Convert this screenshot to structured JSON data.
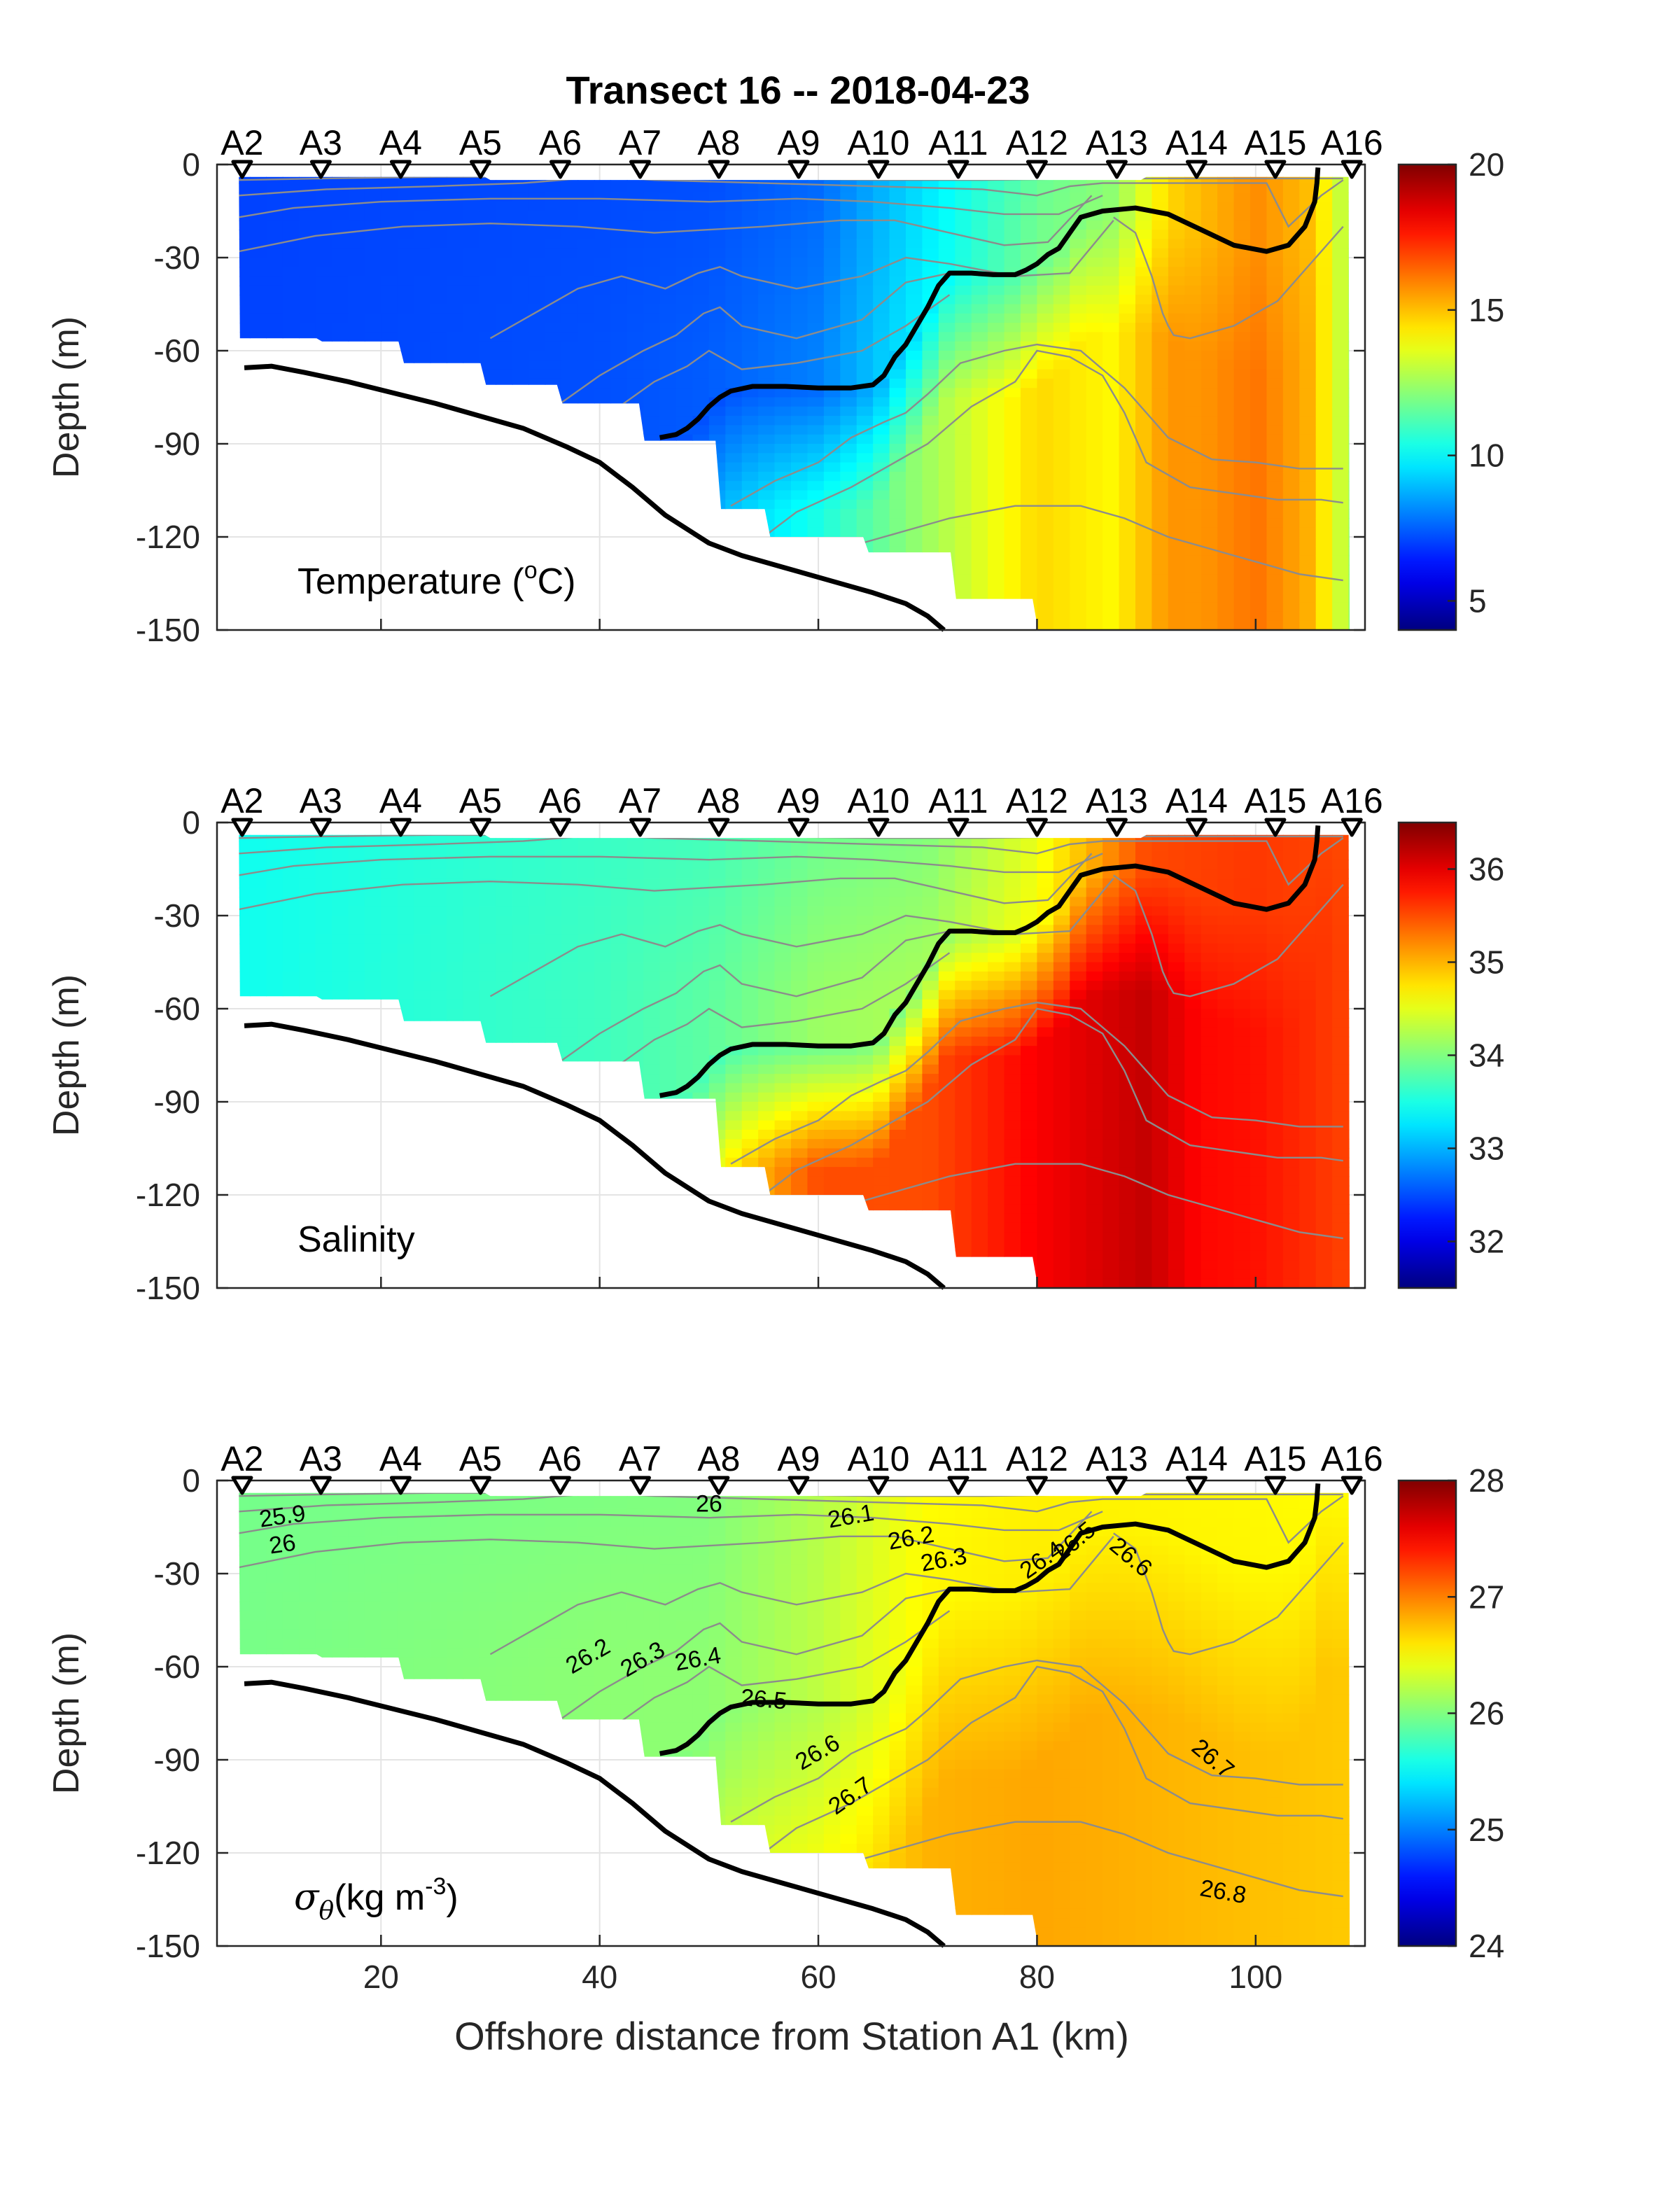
{
  "figure_title": "Transect 16 -- 2018-04-23",
  "xlabel": "Offshore distance from Station A1 (km)",
  "x_tick_labels": [
    "20",
    "40",
    "60",
    "80",
    "100"
  ],
  "x_ticks": [
    20,
    40,
    60,
    80,
    100
  ],
  "xlim": [
    5,
    110
  ],
  "stations": {
    "names": [
      "A2",
      "A3",
      "A4",
      "A5",
      "A6",
      "A7",
      "A8",
      "A9",
      "A10",
      "A11",
      "A12",
      "A13",
      "A14",
      "A15",
      "A16"
    ],
    "km": [
      7.3,
      14.5,
      21.8,
      29.1,
      36.4,
      43.7,
      50.9,
      58.2,
      65.5,
      72.8,
      80.0,
      87.3,
      94.6,
      101.8,
      108.8
    ]
  },
  "colors": {
    "contour_gray": "#8c8c8c",
    "bold_line": "#000000",
    "bathymetry": "#000000",
    "grid": "#e4e4e4"
  },
  "chart_data": [
    {
      "type": "heatmap",
      "name": "temperature",
      "ylabel": "Depth (m)",
      "panel_label": "Temperature (",
      "panel_label_sup": "o",
      "panel_label_suffix": "C)",
      "ylim": [
        -150,
        0
      ],
      "y_ticks": [
        0,
        -30,
        -60,
        -90,
        -120,
        -150
      ],
      "y_tick_labels": [
        "0",
        "-30",
        "-60",
        "-90",
        "-120",
        "-150"
      ],
      "clim": [
        4,
        20
      ],
      "colorbar_ticks": [
        5,
        10,
        15,
        20
      ],
      "colorbar_tick_labels": [
        "5",
        "10",
        "15",
        "20"
      ],
      "color_stops": [
        [
          0,
          7.0
        ],
        [
          50,
          7.2
        ],
        [
          60,
          7.6
        ],
        [
          70,
          9.6
        ],
        [
          73,
          10.2
        ],
        [
          80,
          11.6
        ],
        [
          87,
          12.2
        ],
        [
          92,
          14.6
        ],
        [
          100,
          15.8
        ],
        [
          105,
          15.0
        ],
        [
          110,
          11.6
        ]
      ],
      "deep_bias": [
        [
          0,
          0.0
        ],
        [
          40,
          0.5
        ],
        [
          60,
          2.8
        ],
        [
          80,
          3.0
        ],
        [
          95,
          0.6
        ],
        [
          110,
          0.0
        ]
      ],
      "deep_scale": 40
    },
    {
      "type": "heatmap",
      "name": "salinity",
      "ylabel": "Depth (m)",
      "panel_label": "Salinity",
      "ylim": [
        -150,
        0
      ],
      "y_ticks": [
        0,
        -30,
        -60,
        -90,
        -120,
        -150
      ],
      "y_tick_labels": [
        "0",
        "-30",
        "-60",
        "-90",
        "-120",
        "-150"
      ],
      "clim": [
        31.5,
        36.5
      ],
      "colorbar_ticks": [
        32,
        33,
        34,
        35,
        36
      ],
      "colorbar_tick_labels": [
        "32",
        "33",
        "34",
        "35",
        "36"
      ],
      "color_stops": [
        [
          0,
          33.4
        ],
        [
          30,
          33.6
        ],
        [
          50,
          33.7
        ],
        [
          60,
          33.9
        ],
        [
          70,
          34.0
        ],
        [
          80,
          34.5
        ],
        [
          90,
          35.5
        ],
        [
          100,
          35.6
        ],
        [
          110,
          35.5
        ]
      ],
      "deep_bias": [
        [
          0,
          0.0
        ],
        [
          40,
          0.2
        ],
        [
          60,
          1.6
        ],
        [
          80,
          1.4
        ],
        [
          95,
          0.3
        ],
        [
          110,
          0.0
        ]
      ],
      "deep_scale": 40
    },
    {
      "type": "heatmap",
      "name": "sigma_theta",
      "ylabel": "Depth (m)",
      "panel_label": "σ",
      "panel_label_sub": "θ",
      "panel_label_suffix": "(kg m",
      "panel_label_sup": "-3",
      "panel_label_end": ")",
      "ylim": [
        -150,
        0
      ],
      "y_ticks": [
        0,
        -30,
        -60,
        -90,
        -120,
        -150
      ],
      "y_tick_labels": [
        "0",
        "-30",
        "-60",
        "-90",
        "-120",
        "-150"
      ],
      "clim": [
        24,
        28
      ],
      "colorbar_ticks": [
        24,
        25,
        26,
        27,
        28
      ],
      "colorbar_tick_labels": [
        "24",
        "25",
        "26",
        "27",
        "28"
      ],
      "color_stops": [
        [
          0,
          25.95
        ],
        [
          50,
          26.0
        ],
        [
          60,
          26.2
        ],
        [
          70,
          26.5
        ],
        [
          80,
          26.55
        ],
        [
          110,
          26.5
        ]
      ],
      "deep_bias": [
        [
          0,
          0.0
        ],
        [
          40,
          0.4
        ],
        [
          60,
          0.3
        ],
        [
          80,
          0.3
        ],
        [
          110,
          0.2
        ]
      ],
      "deep_scale": 60,
      "contour_labels": [
        {
          "text": "25.9",
          "x": 11,
          "y": -12,
          "angle": -8
        },
        {
          "text": "26",
          "x": 11,
          "y": -21,
          "angle": -8
        },
        {
          "text": "26",
          "x": 50,
          "y": -8,
          "angle": 0
        },
        {
          "text": "26.1",
          "x": 63,
          "y": -12,
          "angle": -10
        },
        {
          "text": "26.2",
          "x": 68.5,
          "y": -19,
          "angle": -10
        },
        {
          "text": "26.3",
          "x": 71.5,
          "y": -26,
          "angle": -10
        },
        {
          "text": "26.4",
          "x": 80.5,
          "y": -26,
          "angle": -35
        },
        {
          "text": "26.5",
          "x": 83.5,
          "y": -20,
          "angle": -40
        },
        {
          "text": "26.6",
          "x": 88.5,
          "y": -25,
          "angle": 40
        },
        {
          "text": "26.2",
          "x": 39,
          "y": -57,
          "angle": -30
        },
        {
          "text": "26.3",
          "x": 44,
          "y": -58,
          "angle": -30
        },
        {
          "text": "26.4",
          "x": 49,
          "y": -58,
          "angle": -10
        },
        {
          "text": "26.5",
          "x": 55,
          "y": -71,
          "angle": 5
        },
        {
          "text": "26.6",
          "x": 60,
          "y": -88,
          "angle": -30
        },
        {
          "text": "26.7",
          "x": 63,
          "y": -102,
          "angle": -35
        },
        {
          "text": "26.7",
          "x": 96,
          "y": -90,
          "angle": 40
        },
        {
          "text": "26.8",
          "x": 97,
          "y": -133,
          "angle": 10
        }
      ]
    }
  ],
  "bathymetry": {
    "x": [
      7.5,
      10,
      13,
      17,
      21,
      25,
      29,
      33,
      37,
      40,
      43,
      46,
      50,
      53,
      57,
      61,
      65,
      68,
      70,
      71.5
    ],
    "y": [
      -65.5,
      -65,
      -67,
      -70,
      -73.5,
      -77,
      -81,
      -85,
      -91,
      -96,
      -104,
      -113,
      -122,
      -126,
      -130,
      -134,
      -138,
      -141.5,
      -145.5,
      -150
    ]
  },
  "bold_contour": {
    "x": [
      45.5,
      47,
      48,
      49,
      50,
      51,
      52,
      54,
      57,
      60,
      63,
      65,
      66,
      67,
      68,
      69,
      70,
      71,
      72,
      74,
      76,
      78,
      79,
      80,
      81,
      82,
      83,
      84,
      86,
      89,
      92,
      95,
      98,
      101,
      103,
      104.5,
      105.4,
      105.6,
      105.7
    ],
    "y": [
      -88,
      -87,
      -85,
      -82,
      -78,
      -75,
      -73,
      -71.5,
      -71.5,
      -72,
      -72,
      -71,
      -68,
      -62,
      -58,
      -52,
      -46,
      -39,
      -35,
      -35,
      -35.5,
      -35.5,
      -34,
      -32,
      -29,
      -27,
      -22,
      -17,
      -15,
      -14,
      -16,
      -21,
      -26,
      -28,
      -26,
      -20,
      -12,
      -6,
      -1
    ]
  },
  "thin_contours": [
    {
      "x": [
        7,
        15,
        25,
        35,
        45,
        55,
        65,
        75,
        85,
        95,
        108
      ],
      "y": [
        -5,
        -4.5,
        -4,
        -4,
        -4.5,
        -4.5,
        -5,
        -5,
        -4.5,
        -4.5,
        -4.5
      ]
    },
    {
      "x": [
        7,
        15,
        25,
        33,
        40,
        45,
        55,
        65,
        75,
        80,
        83,
        86,
        90,
        95,
        101,
        103,
        106,
        108
      ],
      "y": [
        -10,
        -8,
        -7,
        -6,
        -4,
        -5,
        -6,
        -7,
        -8,
        -10,
        -7,
        -6,
        -6,
        -6,
        -6,
        -20,
        -10,
        -5
      ]
    },
    {
      "x": [
        7,
        12,
        20,
        30,
        40,
        50,
        58,
        65,
        72,
        77,
        82,
        86
      ],
      "y": [
        -17,
        -14,
        -12,
        -11,
        -11,
        -12,
        -11,
        -12,
        -14,
        -16,
        -16,
        -10
      ]
    },
    {
      "x": [
        7,
        14,
        22,
        30,
        38,
        45,
        50,
        55,
        62,
        67,
        72,
        77,
        81,
        85
      ],
      "y": [
        -28,
        -23,
        -20,
        -19,
        -20,
        -22,
        -21,
        -20,
        -18,
        -18,
        -22,
        -26,
        -25,
        -10
      ]
    },
    {
      "x": [
        30,
        34,
        38,
        42,
        46,
        49,
        51,
        53,
        58,
        64,
        68,
        72,
        78,
        83,
        87
      ],
      "y": [
        -56,
        -48,
        -40,
        -36,
        -40,
        -35,
        -33,
        -36,
        -40,
        -36,
        -30,
        -32,
        -36,
        -35,
        -18
      ]
    },
    {
      "x": [
        36,
        40,
        44,
        47,
        49.5,
        51,
        53,
        58,
        64,
        68,
        72
      ],
      "y": [
        -78,
        -68,
        -60,
        -55,
        -48,
        -46,
        -52,
        -56,
        -50,
        -38,
        -35
      ]
    },
    {
      "x": [
        41,
        45,
        48,
        50,
        53,
        58,
        64,
        68,
        72
      ],
      "y": [
        -80,
        -70,
        -65,
        -60,
        -66,
        -64,
        -60,
        -52,
        -42
      ]
    },
    {
      "x": [
        52,
        56,
        60,
        63,
        66,
        68,
        70,
        73,
        77,
        80,
        84,
        88,
        92,
        96,
        100,
        104,
        108
      ],
      "y": [
        -110,
        -102,
        -96,
        -88,
        -83,
        -80,
        -74,
        -64,
        -60,
        -58,
        -60,
        -72,
        -88,
        -95,
        -96,
        -98,
        -98
      ]
    },
    {
      "x": [
        55,
        58,
        63,
        67,
        70,
        74,
        78,
        80,
        83,
        86,
        88,
        90,
        94,
        98,
        102,
        106,
        108
      ],
      "y": [
        -120,
        -112,
        -104,
        -96,
        -90,
        -78,
        -70,
        -60,
        -62,
        -68,
        -80,
        -96,
        -104,
        -106,
        -108,
        -108,
        -109
      ]
    },
    {
      "x": [
        64,
        68,
        72,
        78,
        84,
        88,
        92,
        96,
        100,
        104,
        108
      ],
      "y": [
        -122,
        -118,
        -114,
        -110,
        -110,
        -114,
        -120,
        -124,
        -128,
        -132,
        -134
      ]
    },
    {
      "x": [
        87,
        89,
        90.5,
        91.5,
        92,
        92.5,
        94,
        98,
        102,
        105,
        108
      ],
      "y": [
        -17,
        -22,
        -36,
        -48,
        -52,
        -55,
        -56,
        -52,
        -44,
        -32,
        -20
      ]
    }
  ]
}
